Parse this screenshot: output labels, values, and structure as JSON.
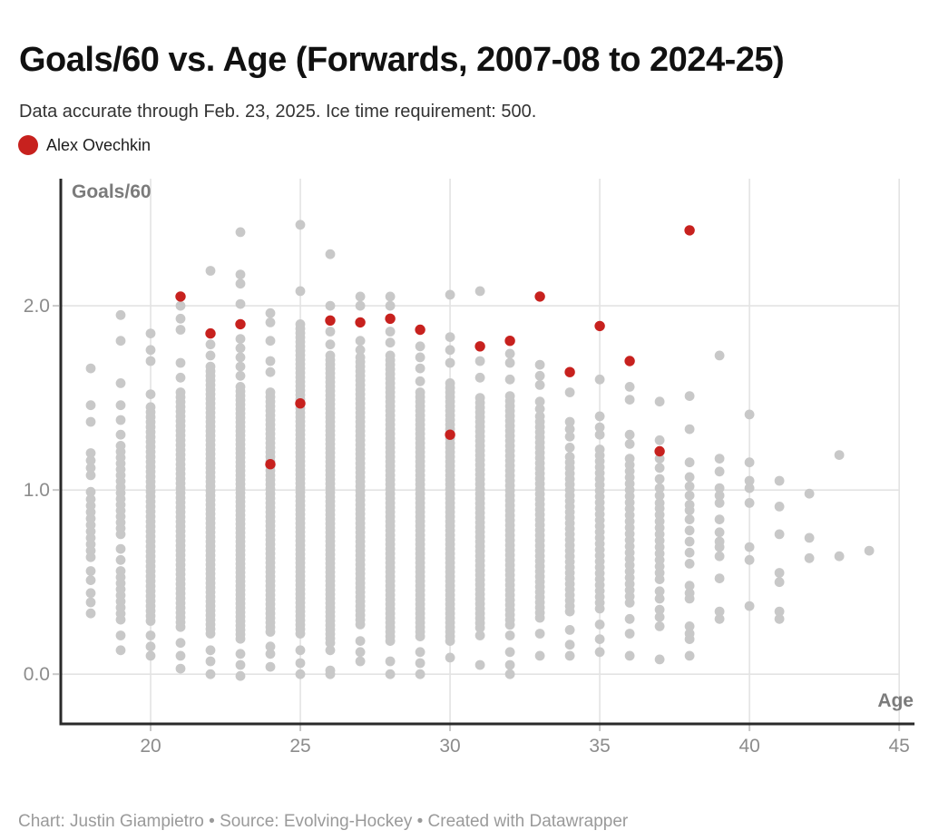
{
  "header": {
    "title": "Goals/60 vs. Age (Forwards, 2007-08 to 2024-25)",
    "subtitle": "Data accurate through Feb. 23, 2025. Ice time requirement: 500."
  },
  "legend": {
    "items": [
      {
        "label": "Alex Ovechkin",
        "color": "#c7211e"
      }
    ]
  },
  "footer": {
    "text": "Chart: Justin Giampietro • Source: Evolving-Hockey • Created with Datawrapper"
  },
  "chart_data": {
    "type": "scatter",
    "title": "Goals/60 vs. Age (Forwards, 2007-08 to 2024-25)",
    "xlabel": "Age",
    "ylabel": "Goals/60",
    "xlim": [
      17.0,
      45.45
    ],
    "ylim": [
      -0.27,
      2.69
    ],
    "grid": true,
    "x_ticks": [
      20,
      25,
      30,
      35,
      40,
      45
    ],
    "y_ticks": [
      {
        "value": 0.0,
        "label": "0.0"
      },
      {
        "value": 1.0,
        "label": "1.0"
      },
      {
        "value": 2.0,
        "label": "2.0"
      }
    ],
    "colors": {
      "background": "#c8c8c8",
      "highlight": "#c7211e",
      "grid": "#e3e3e3",
      "axis": "#2a2a2a",
      "tick_label": "#8c8c8c"
    },
    "series": {
      "highlight": {
        "label": "Alex Ovechkin",
        "color": "#c7211e",
        "points": [
          [
            21,
            2.05
          ],
          [
            22,
            1.85
          ],
          [
            23,
            1.9
          ],
          [
            24,
            1.14
          ],
          [
            25,
            1.47
          ],
          [
            26,
            1.92
          ],
          [
            27,
            1.91
          ],
          [
            28,
            1.93
          ],
          [
            29,
            1.87
          ],
          [
            30,
            1.3
          ],
          [
            31,
            1.78
          ],
          [
            32,
            1.81
          ],
          [
            33,
            2.05
          ],
          [
            34,
            1.64
          ],
          [
            35,
            1.89
          ],
          [
            36,
            1.7
          ],
          [
            37,
            1.21
          ],
          [
            38,
            2.41
          ]
        ]
      },
      "background": {
        "color": "#c8c8c8",
        "columns": [
          {
            "age": 18,
            "points": [
              1.66,
              1.46,
              1.37,
              1.2,
              1.16,
              1.12,
              1.08,
              0.99,
              0.56,
              0.51,
              0.44,
              0.39,
              0.33
            ],
            "bands": [
              [
                0.95,
                0.62,
                0.035
              ]
            ]
          },
          {
            "age": 19,
            "points": [
              1.95,
              1.81,
              1.58,
              1.46,
              1.38,
              1.3,
              0.68,
              0.62,
              0.21,
              0.13
            ],
            "bands": [
              [
                1.24,
                0.74,
                0.032
              ],
              [
                0.56,
                0.28,
                0.033
              ]
            ]
          },
          {
            "age": 20,
            "points": [
              1.85,
              1.76,
              1.7,
              1.52,
              0.21,
              0.15,
              0.1
            ],
            "bands": [
              [
                1.45,
                0.28,
                0.027
              ]
            ]
          },
          {
            "age": 21,
            "points": [
              2.0,
              1.93,
              1.87,
              1.69,
              1.61,
              0.17,
              0.1,
              0.03
            ],
            "bands": [
              [
                1.53,
                0.24,
                0.026
              ]
            ]
          },
          {
            "age": 22,
            "points": [
              2.19,
              1.79,
              1.73,
              0.13,
              0.07,
              0.0
            ],
            "bands": [
              [
                1.67,
                0.2,
                0.025
              ]
            ]
          },
          {
            "age": 23,
            "points": [
              2.4,
              2.17,
              2.12,
              2.01,
              1.82,
              1.77,
              1.72,
              1.67,
              1.62,
              0.11,
              0.05,
              -0.01
            ],
            "bands": [
              [
                1.56,
                0.18,
                0.024
              ]
            ]
          },
          {
            "age": 24,
            "points": [
              1.96,
              1.91,
              1.81,
              1.7,
              1.64,
              0.15,
              0.11,
              0.04
            ],
            "bands": [
              [
                1.53,
                0.22,
                0.025
              ]
            ]
          },
          {
            "age": 25,
            "points": [
              2.44,
              2.08,
              0.13,
              0.06,
              0.0
            ],
            "bands": [
              [
                1.9,
                0.2,
                0.024
              ]
            ]
          },
          {
            "age": 26,
            "points": [
              2.28,
              2.0,
              1.86,
              1.79,
              0.13,
              0.02,
              0.0
            ],
            "bands": [
              [
                1.73,
                0.17,
                0.024
              ]
            ]
          },
          {
            "age": 27,
            "points": [
              2.05,
              2.0,
              1.81,
              1.76,
              0.18,
              0.12,
              0.07
            ],
            "bands": [
              [
                1.72,
                0.25,
                0.025
              ]
            ]
          },
          {
            "age": 28,
            "points": [
              2.05,
              2.0,
              1.86,
              1.8,
              0.07,
              0.0
            ],
            "bands": [
              [
                1.73,
                0.16,
                0.025
              ]
            ]
          },
          {
            "age": 29,
            "points": [
              1.78,
              1.72,
              1.66,
              1.59,
              0.12,
              0.06,
              0.0
            ],
            "bands": [
              [
                1.53,
                0.2,
                0.025
              ]
            ]
          },
          {
            "age": 30,
            "points": [
              2.06,
              1.83,
              1.76,
              1.69,
              0.09
            ],
            "bands": [
              [
                1.58,
                0.18,
                0.025
              ]
            ]
          },
          {
            "age": 31,
            "points": [
              2.08,
              1.7,
              1.61,
              0.21,
              0.05
            ],
            "bands": [
              [
                1.5,
                0.24,
                0.026
              ]
            ]
          },
          {
            "age": 32,
            "points": [
              1.74,
              1.69,
              1.6,
              0.21,
              0.12,
              0.05,
              0.0
            ],
            "bands": [
              [
                1.51,
                0.26,
                0.027
              ]
            ]
          },
          {
            "age": 33,
            "points": [
              1.68,
              1.62,
              1.57,
              1.48,
              1.44,
              1.4,
              0.22,
              0.1
            ],
            "bands": [
              [
                1.37,
                0.3,
                0.028
              ]
            ]
          },
          {
            "age": 34,
            "points": [
              1.53,
              1.37,
              1.33,
              1.29,
              1.23,
              0.24,
              0.16,
              0.1
            ],
            "bands": [
              [
                1.18,
                0.32,
                0.03
              ]
            ]
          },
          {
            "age": 35,
            "points": [
              1.6,
              1.4,
              1.34,
              1.3,
              0.27,
              0.19,
              0.12
            ],
            "bands": [
              [
                1.22,
                0.35,
                0.032
              ]
            ]
          },
          {
            "age": 36,
            "points": [
              1.56,
              1.49,
              1.3,
              1.25,
              0.3,
              0.22,
              0.1
            ],
            "bands": [
              [
                1.17,
                0.38,
                0.034
              ]
            ]
          },
          {
            "age": 37,
            "points": [
              1.48,
              1.27,
              1.17,
              1.12,
              1.06,
              1.01,
              0.97,
              0.93,
              0.45,
              0.41,
              0.35,
              0.31,
              0.26,
              0.08
            ],
            "bands": [
              [
                0.9,
                0.49,
                0.035
              ]
            ]
          },
          {
            "age": 38,
            "points": [
              1.51,
              1.33,
              1.15,
              1.07,
              1.02,
              0.97,
              0.92,
              0.89,
              0.84,
              0.78,
              0.72,
              0.66,
              0.6,
              0.48,
              0.44,
              0.41,
              0.26,
              0.22,
              0.19,
              0.1
            ],
            "bands": []
          },
          {
            "age": 39,
            "points": [
              1.73,
              1.17,
              1.1,
              1.01,
              0.97,
              0.93,
              0.84,
              0.77,
              0.72,
              0.69,
              0.64,
              0.52,
              0.34,
              0.3
            ],
            "bands": []
          },
          {
            "age": 40,
            "points": [
              1.41,
              1.15,
              1.05,
              1.01,
              0.93,
              0.69,
              0.62,
              0.37
            ],
            "bands": []
          },
          {
            "age": 41,
            "points": [
              1.05,
              0.91,
              0.76,
              0.55,
              0.5,
              0.34,
              0.3
            ],
            "bands": []
          },
          {
            "age": 42,
            "points": [
              0.98,
              0.74,
              0.63
            ],
            "bands": []
          },
          {
            "age": 43,
            "points": [
              1.19,
              0.64
            ],
            "bands": []
          },
          {
            "age": 44,
            "points": [
              0.67
            ],
            "bands": []
          }
        ]
      }
    }
  }
}
